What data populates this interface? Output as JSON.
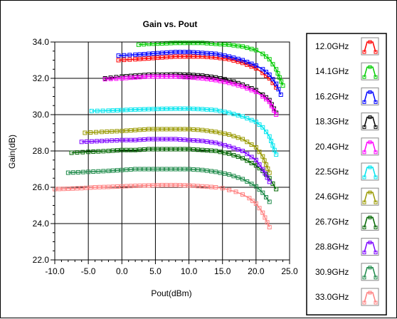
{
  "chart_data": {
    "type": "line",
    "title": "Gain vs. Pout",
    "xlabel": "Pout(dBm)",
    "ylabel": "Gain(dB)",
    "xlim": [
      -10,
      25
    ],
    "ylim": [
      22,
      34
    ],
    "x_ticks": [
      -10,
      -5,
      0,
      5,
      10,
      15,
      20,
      25
    ],
    "x_tick_labels": [
      "-10.0",
      "-5.0",
      "0.0",
      "5.0",
      "10.0",
      "15.0",
      "20.0",
      "25.0"
    ],
    "y_ticks": [
      22,
      24,
      26,
      28,
      30,
      32,
      34
    ],
    "y_tick_labels": [
      "22.0",
      "24.0",
      "26.0",
      "28.0",
      "30.0",
      "32.0",
      "34.0"
    ],
    "grid": true,
    "legend_position": "right",
    "marker": "square",
    "series": [
      {
        "name": "12.0GHz",
        "color": "#ff0000",
        "x": [
          -0.5,
          2,
          4,
          6,
          8,
          10,
          12,
          14,
          16,
          18,
          20,
          21,
          22,
          23
        ],
        "y": [
          33.0,
          33.05,
          33.1,
          33.15,
          33.2,
          33.2,
          33.2,
          33.15,
          33.05,
          32.85,
          32.55,
          32.3,
          32.0,
          31.5
        ]
      },
      {
        "name": "14.1GHz",
        "color": "#00cc00",
        "x": [
          2.5,
          4,
          6,
          8,
          10,
          12,
          14,
          16,
          18,
          20,
          21,
          22,
          23,
          24
        ],
        "y": [
          33.85,
          33.9,
          33.92,
          33.95,
          33.95,
          33.95,
          33.9,
          33.85,
          33.75,
          33.55,
          33.35,
          33.05,
          32.5,
          31.6
        ]
      },
      {
        "name": "16.2GHz",
        "color": "#0000ff",
        "x": [
          -0.5,
          2,
          4,
          6,
          8,
          10,
          12,
          14,
          16,
          18,
          20,
          21,
          22,
          23,
          23.7
        ],
        "y": [
          33.25,
          33.3,
          33.35,
          33.4,
          33.45,
          33.45,
          33.4,
          33.35,
          33.2,
          33.0,
          32.7,
          32.5,
          32.2,
          31.7,
          31.1
        ]
      },
      {
        "name": "18.3GHz",
        "color": "#000000",
        "x": [
          -2.5,
          0,
          2,
          4,
          6,
          8,
          10,
          12,
          14,
          16,
          18,
          20,
          21,
          22,
          23
        ],
        "y": [
          32.0,
          32.1,
          32.15,
          32.2,
          32.2,
          32.22,
          32.2,
          32.15,
          32.05,
          31.9,
          31.65,
          31.35,
          31.1,
          30.8,
          30.1
        ]
      },
      {
        "name": "20.4GHz",
        "color": "#ff00ff",
        "x": [
          -2.5,
          0,
          2,
          4,
          6,
          8,
          10,
          12,
          14,
          16,
          18,
          20,
          21,
          22,
          23
        ],
        "y": [
          31.95,
          32.0,
          32.05,
          32.1,
          32.1,
          32.1,
          32.05,
          32.0,
          31.9,
          31.75,
          31.55,
          31.25,
          31.0,
          30.7,
          30.0
        ]
      },
      {
        "name": "22.5GHz",
        "color": "#00e5ee",
        "x": [
          -4.5,
          -2,
          0,
          2,
          4,
          6,
          8,
          10,
          12,
          14,
          16,
          18,
          20,
          21,
          22,
          23
        ],
        "y": [
          30.2,
          30.22,
          30.25,
          30.28,
          30.3,
          30.32,
          30.33,
          30.33,
          30.3,
          30.25,
          30.1,
          29.9,
          29.6,
          29.3,
          28.8,
          27.8
        ]
      },
      {
        "name": "24.6GHz",
        "color": "#999900",
        "x": [
          -5.5,
          -3,
          0,
          2,
          4,
          6,
          8,
          10,
          12,
          14,
          16,
          18,
          20,
          21,
          22
        ],
        "y": [
          29.0,
          29.05,
          29.1,
          29.15,
          29.2,
          29.2,
          29.2,
          29.2,
          29.15,
          29.05,
          28.9,
          28.65,
          28.2,
          27.7,
          26.8
        ]
      },
      {
        "name": "26.7GHz",
        "color": "#006600",
        "x": [
          -7.5,
          -5,
          -2,
          0,
          2,
          4,
          6,
          8,
          10,
          12,
          14,
          16,
          18,
          20,
          21,
          22,
          23
        ],
        "y": [
          27.9,
          27.95,
          28.0,
          28.05,
          28.05,
          28.1,
          28.1,
          28.1,
          28.1,
          28.05,
          28.0,
          27.85,
          27.6,
          27.2,
          26.9,
          26.5,
          25.9
        ]
      },
      {
        "name": "28.8GHz",
        "color": "#7b00ff",
        "x": [
          -6,
          -3,
          0,
          2,
          4,
          6,
          8,
          10,
          12,
          14,
          16,
          18,
          20,
          21,
          22
        ],
        "y": [
          28.5,
          28.55,
          28.6,
          28.6,
          28.65,
          28.65,
          28.65,
          28.6,
          28.55,
          28.45,
          28.25,
          28.0,
          27.5,
          27.0,
          26.3
        ]
      },
      {
        "name": "30.9GHz",
        "color": "#1e8a4a",
        "x": [
          -8,
          -5,
          -2,
          0,
          2,
          4,
          6,
          8,
          10,
          12,
          14,
          16,
          18,
          20,
          21,
          22
        ],
        "y": [
          26.8,
          26.85,
          26.9,
          26.95,
          27.0,
          27.0,
          27.0,
          27.0,
          27.0,
          26.95,
          26.85,
          26.7,
          26.45,
          26.05,
          25.7,
          25.2
        ]
      },
      {
        "name": "33.0GHz",
        "color": "#ff8080",
        "x": [
          -10,
          -8,
          -6,
          -4,
          -2,
          0,
          2,
          4,
          6,
          8,
          10,
          12,
          14,
          15,
          16,
          17,
          18,
          19,
          20,
          21,
          22
        ],
        "y": [
          25.9,
          25.92,
          25.95,
          26.0,
          26.02,
          26.05,
          26.08,
          26.1,
          26.12,
          26.12,
          26.1,
          26.05,
          26.0,
          25.95,
          25.85,
          25.75,
          25.6,
          25.4,
          25.1,
          24.6,
          23.8
        ]
      }
    ]
  }
}
